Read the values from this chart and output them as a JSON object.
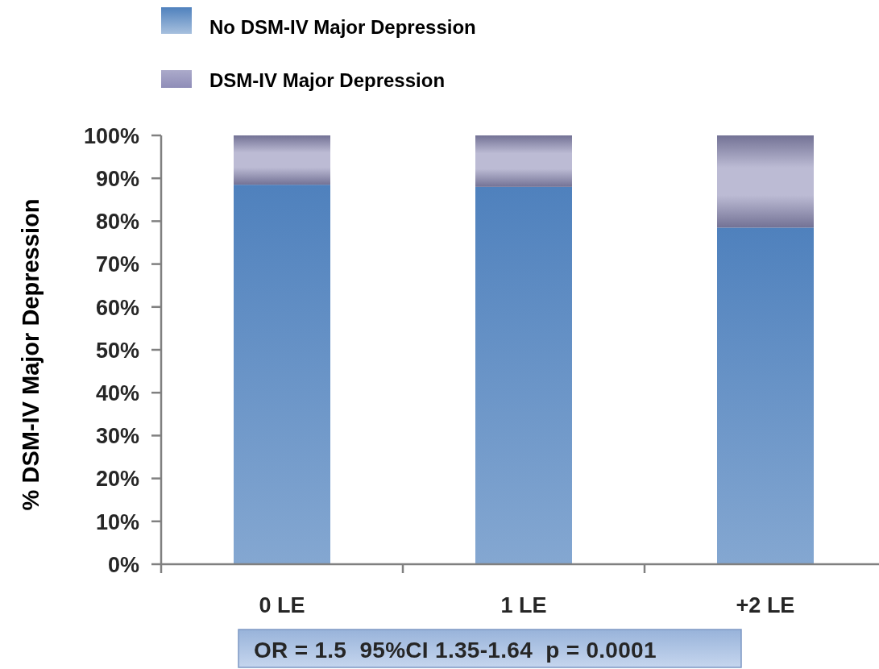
{
  "chart_data": {
    "type": "bar",
    "stacked": true,
    "categories": [
      "0 LE",
      "1 LE",
      "+2 LE"
    ],
    "series": [
      {
        "name": "No DSM-IV Major Depression",
        "color": "#4f81bd",
        "values": [
          88.5,
          88,
          78.5
        ]
      },
      {
        "name": "DSM-IV Major Depression",
        "color": "#8f8db8",
        "values": [
          11.5,
          12,
          21.5
        ]
      }
    ],
    "ylabel": "% DSM-IV Major Depression",
    "ylim": [
      0,
      100
    ],
    "yticks": [
      {
        "value": 0,
        "label": "0%"
      },
      {
        "value": 10,
        "label": "10%"
      },
      {
        "value": 20,
        "label": "20%"
      },
      {
        "value": 30,
        "label": "30%"
      },
      {
        "value": 40,
        "label": "40%"
      },
      {
        "value": 50,
        "label": "50%"
      },
      {
        "value": 60,
        "label": "60%"
      },
      {
        "value": 70,
        "label": "70%"
      },
      {
        "value": 80,
        "label": "80%"
      },
      {
        "value": 90,
        "label": "90%"
      },
      {
        "value": 100,
        "label": "100%"
      }
    ],
    "legend": "top left",
    "annotations": [
      "OR = 1.5  95%CI 1.35-1.64  p = 0.0001"
    ]
  }
}
